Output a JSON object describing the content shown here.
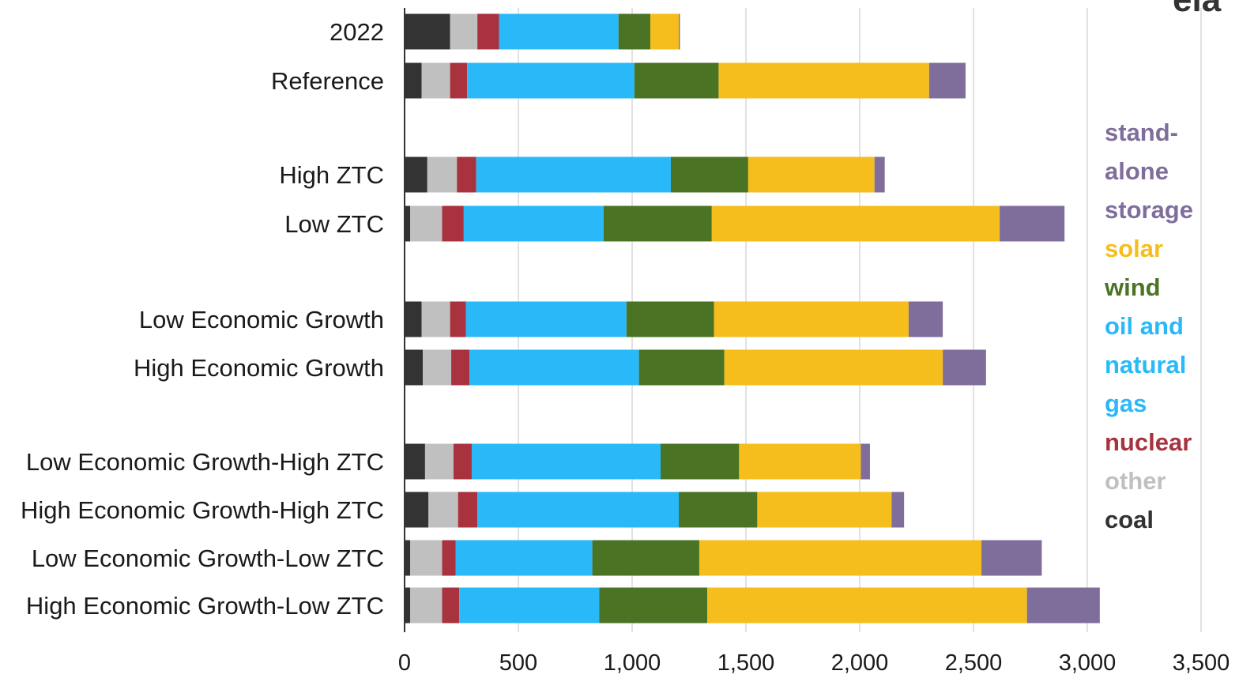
{
  "brand": "eia",
  "chart_data": {
    "type": "bar",
    "orientation": "horizontal",
    "stacked": true,
    "categories": [
      "2022",
      "Reference",
      "High ZTC",
      "Low ZTC",
      "Low Economic Growth",
      "High Economic Growth",
      "Low Economic Growth-High ZTC",
      "High Economic Growth-High ZTC",
      "Low Economic Growth-Low ZTC",
      "High Economic Growth-Low ZTC"
    ],
    "series": [
      {
        "name": "coal",
        "color": "#333333",
        "values": [
          200,
          75,
          100,
          25,
          75,
          80,
          90,
          105,
          25,
          25
        ]
      },
      {
        "name": "other",
        "color": "#c0c0c0",
        "values": [
          120,
          125,
          130,
          140,
          125,
          125,
          125,
          130,
          140,
          140
        ]
      },
      {
        "name": "nuclear",
        "color": "#a8323e",
        "values": [
          95,
          75,
          85,
          95,
          70,
          80,
          80,
          85,
          60,
          75
        ]
      },
      {
        "name": "oil and natural gas",
        "color": "#29b9f9",
        "values": [
          525,
          735,
          855,
          615,
          705,
          745,
          830,
          885,
          600,
          615
        ]
      },
      {
        "name": "wind",
        "color": "#4a7324",
        "values": [
          140,
          370,
          340,
          475,
          385,
          375,
          345,
          345,
          470,
          475
        ]
      },
      {
        "name": "solar",
        "color": "#f5be1c",
        "values": [
          125,
          925,
          555,
          1265,
          855,
          960,
          535,
          590,
          1240,
          1405
        ]
      },
      {
        "name": "stand-alone storage",
        "color": "#7f6e9c",
        "values": [
          5,
          160,
          45,
          285,
          150,
          190,
          40,
          55,
          265,
          320
        ]
      }
    ],
    "legend": {
      "placement": "right",
      "order": [
        "stand-alone storage",
        "solar",
        "wind",
        "oil and natural gas",
        "nuclear",
        "other",
        "coal"
      ],
      "labels": [
        {
          "lines": [
            "stand-",
            "alone",
            "storage"
          ],
          "color": "#7f6e9c"
        },
        {
          "lines": [
            "solar"
          ],
          "color": "#f5be1c"
        },
        {
          "lines": [
            "wind"
          ],
          "color": "#4a7324"
        },
        {
          "lines": [
            "oil and",
            "natural",
            "gas"
          ],
          "color": "#29b9f9"
        },
        {
          "lines": [
            "nuclear"
          ],
          "color": "#a8323e"
        },
        {
          "lines": [
            "other"
          ],
          "color": "#c0c0c0"
        },
        {
          "lines": [
            "coal"
          ],
          "color": "#333333"
        }
      ]
    },
    "xlim": [
      0,
      3500
    ],
    "xticks": [
      0,
      500,
      1000,
      1500,
      2000,
      2500,
      3000,
      3500
    ],
    "xtick_labels": [
      "0",
      "500",
      "1,000",
      "1,500",
      "2,000",
      "2,500",
      "3,000",
      "3,500"
    ],
    "grid": "vertical",
    "title": "",
    "xlabel": "",
    "ylabel": ""
  }
}
